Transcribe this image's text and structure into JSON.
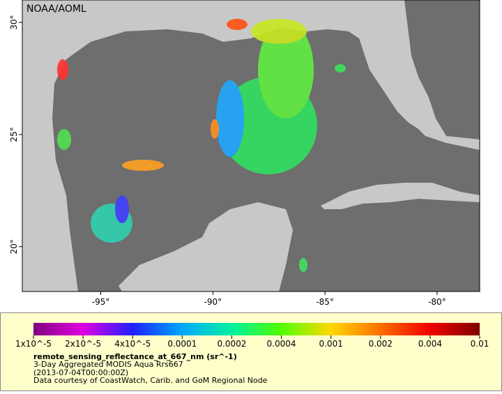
{
  "map": {
    "credit": "NOAA/AOML",
    "xlim": [
      -98.5,
      -78.1
    ],
    "ylim": [
      18,
      31
    ],
    "xticks": [
      {
        "value": -95,
        "label": "-95°"
      },
      {
        "value": -90,
        "label": "-90°"
      },
      {
        "value": -85,
        "label": "-85°"
      },
      {
        "value": -80,
        "label": "-80°"
      }
    ],
    "yticks": [
      {
        "value": 20,
        "label": "20°"
      },
      {
        "value": 25,
        "label": "25°"
      },
      {
        "value": 30,
        "label": "30°"
      }
    ]
  },
  "colorbar": {
    "tick_labels": [
      "1x10^-5",
      "2x10^-5",
      "4x10^-5",
      "0.0001",
      "0.0002",
      "0.0004",
      "0.001",
      "0.002",
      "0.004",
      "0.01"
    ],
    "title": "remote_sensing_reflectance_at_667_nm (sr^-1)"
  },
  "caption": [
    "3-Day Aggregated MODIS Aqua Rrs667",
    "(2013-07-04T00:00:00Z)",
    "Data courtesy of CoastWatch, Carib. and GoM Regional Node"
  ]
}
